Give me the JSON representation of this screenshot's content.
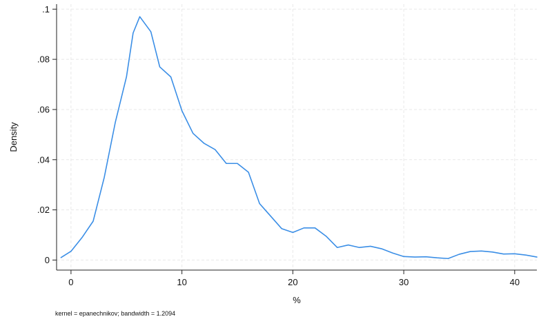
{
  "chart_data": {
    "type": "line",
    "xlabel": "%",
    "ylabel": "Density",
    "note": "kernel = epanechnikov; bandwidth = 1.2094",
    "xlim": [
      -1.3,
      42
    ],
    "ylim": [
      -0.004,
      0.102
    ],
    "x_ticks": [
      0,
      10,
      20,
      30,
      40
    ],
    "x_tick_labels": [
      "0",
      "10",
      "20",
      "30",
      "40"
    ],
    "y_ticks": [
      0,
      0.02,
      0.04,
      0.06,
      0.08,
      0.1
    ],
    "y_tick_labels": [
      "0",
      ".02",
      ".04",
      ".06",
      ".08",
      ".1"
    ],
    "grid": true,
    "line_color": "#3a8ee6",
    "series": [
      {
        "x": [
          -0.9,
          0,
          1,
          2,
          3,
          4,
          5,
          5.6,
          6.2,
          7.2,
          8,
          9,
          10,
          11,
          12,
          13,
          14,
          15,
          16,
          17,
          18,
          19,
          20,
          21,
          22,
          23,
          24,
          25,
          26,
          27,
          28,
          29,
          30,
          31,
          32,
          33,
          34,
          35,
          36,
          37,
          38,
          39,
          40,
          41,
          42
        ],
        "y": [
          0.001,
          0.0035,
          0.009,
          0.0155,
          0.033,
          0.055,
          0.073,
          0.0905,
          0.097,
          0.091,
          0.077,
          0.073,
          0.0595,
          0.0505,
          0.0465,
          0.044,
          0.0385,
          0.0385,
          0.035,
          0.0225,
          0.0175,
          0.0125,
          0.011,
          0.0128,
          0.0128,
          0.0095,
          0.005,
          0.006,
          0.005,
          0.0055,
          0.0045,
          0.0028,
          0.0014,
          0.0012,
          0.0013,
          0.0009,
          0.0006,
          0.0023,
          0.0034,
          0.0036,
          0.0032,
          0.0024,
          0.0025,
          0.002,
          0.0012
        ]
      }
    ]
  }
}
